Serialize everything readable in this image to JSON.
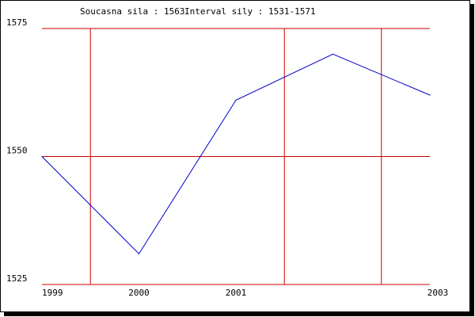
{
  "header": {
    "current_label": "Soucasna sila : 1563",
    "interval_label": "Interval sily : 1531-1571"
  },
  "colors": {
    "grid": "#cc0000",
    "line": "#0000cc",
    "text": "#000000",
    "background": "#ffffff"
  },
  "chart_data": {
    "type": "line",
    "title": "",
    "xlabel": "",
    "ylabel": "",
    "x_ticks": [
      {
        "label": "1999",
        "value": 1999
      },
      {
        "label": "2000",
        "value": 2000
      },
      {
        "label": "2001",
        "value": 2001
      },
      {
        "label": "2003",
        "value": 2003
      }
    ],
    "y_ticks": [
      {
        "label": "1575",
        "value": 1575
      },
      {
        "label": "1550",
        "value": 1550
      },
      {
        "label": "1525",
        "value": 1525
      }
    ],
    "xlim": [
      1999,
      2003
    ],
    "ylim": [
      1525,
      1575
    ],
    "vertical_gridlines": [
      1999.5,
      2001.5,
      2002.5
    ],
    "grid": true,
    "legend": "none",
    "series": [
      {
        "x": [
          1999,
          2000,
          2001,
          2002,
          2003
        ],
        "values": [
          1550,
          1531,
          1561,
          1570,
          1562
        ]
      }
    ]
  }
}
